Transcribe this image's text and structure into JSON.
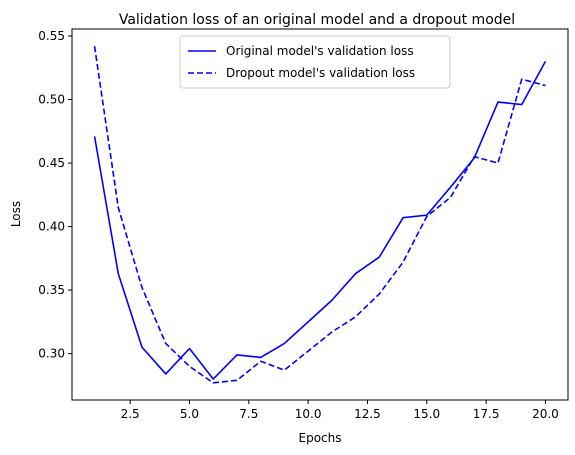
{
  "chart_data": {
    "type": "line",
    "title": "Validation loss of an original model and a dropout model",
    "xlabel": "Epochs",
    "ylabel": "Loss",
    "xlim": [
      0.05,
      20.95
    ],
    "ylim": [
      0.2635,
      0.5555
    ],
    "xticks": [
      2.5,
      5.0,
      7.5,
      10.0,
      12.5,
      15.0,
      17.5,
      20.0
    ],
    "xtick_labels": [
      "2.5",
      "5.0",
      "7.5",
      "10.0",
      "12.5",
      "15.0",
      "17.5",
      "20.0"
    ],
    "yticks": [
      0.3,
      0.35,
      0.4,
      0.45,
      0.5,
      0.55
    ],
    "ytick_labels": [
      "0.30",
      "0.35",
      "0.40",
      "0.45",
      "0.50",
      "0.55"
    ],
    "grid": false,
    "legend_position": "upper center",
    "x": [
      1,
      2,
      3,
      4,
      5,
      6,
      7,
      8,
      9,
      10,
      11,
      12,
      13,
      14,
      15,
      16,
      17,
      18,
      19,
      20
    ],
    "series": [
      {
        "name": "Original model's validation loss",
        "color": "#0000ff",
        "style": "solid",
        "values": [
          0.471,
          0.363,
          0.305,
          0.284,
          0.304,
          0.28,
          0.299,
          0.297,
          0.308,
          0.325,
          0.342,
          0.363,
          0.376,
          0.407,
          0.409,
          0.431,
          0.454,
          0.498,
          0.496,
          0.53
        ]
      },
      {
        "name": "Dropout model's validation loss",
        "color": "#0000ff",
        "style": "dashed",
        "values": [
          0.542,
          0.415,
          0.352,
          0.308,
          0.29,
          0.277,
          0.279,
          0.294,
          0.287,
          0.302,
          0.317,
          0.329,
          0.347,
          0.372,
          0.408,
          0.423,
          0.455,
          0.45,
          0.516,
          0.511
        ]
      }
    ]
  }
}
